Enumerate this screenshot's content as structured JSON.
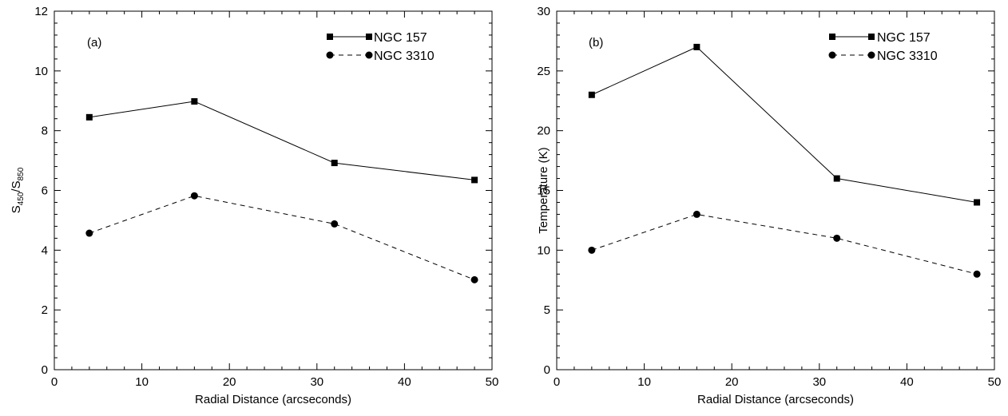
{
  "chart_data": [
    {
      "type": "line",
      "panel_label": "(a)",
      "xlabel": "Radial Distance (arcseconds)",
      "ylabel": {
        "base": "S",
        "sub1": "450",
        "mid": "/S",
        "sub2": "850"
      },
      "xlim": [
        0,
        50
      ],
      "ylim": [
        0,
        12
      ],
      "xticks": [
        0,
        10,
        20,
        30,
        40,
        50
      ],
      "yticks": [
        0,
        2,
        4,
        6,
        8,
        10,
        12
      ],
      "grid": false,
      "legend_position": "top-right",
      "series": [
        {
          "name": "NGC 157",
          "marker": "square",
          "line": "solid",
          "x": [
            4,
            16,
            32,
            48
          ],
          "y": [
            8.45,
            8.98,
            6.92,
            6.35
          ]
        },
        {
          "name": "NGC 3310",
          "marker": "circle",
          "line": "dashed",
          "x": [
            4,
            16,
            32,
            48
          ],
          "y": [
            4.57,
            5.82,
            4.88,
            3.01
          ]
        }
      ]
    },
    {
      "type": "line",
      "panel_label": "(b)",
      "xlabel": "Radial Distance (arcseconds)",
      "ylabel": "Temperature (K)",
      "xlim": [
        0,
        50
      ],
      "ylim": [
        0,
        30
      ],
      "xticks": [
        0,
        10,
        20,
        30,
        40,
        50
      ],
      "yticks": [
        0,
        5,
        10,
        15,
        20,
        25,
        30
      ],
      "grid": false,
      "legend_position": "top-right",
      "series": [
        {
          "name": "NGC 157",
          "marker": "square",
          "line": "solid",
          "x": [
            4,
            16,
            32,
            48
          ],
          "y": [
            23,
            27,
            16,
            14
          ]
        },
        {
          "name": "NGC 3310",
          "marker": "circle",
          "line": "dashed",
          "x": [
            4,
            16,
            32,
            48
          ],
          "y": [
            10,
            13,
            11,
            8
          ]
        }
      ]
    }
  ]
}
